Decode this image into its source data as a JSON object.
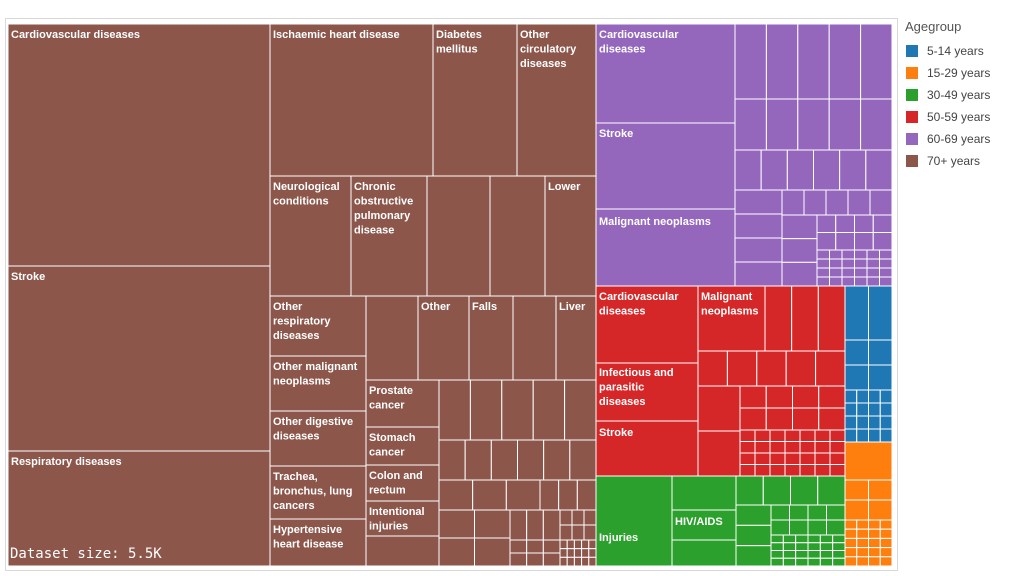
{
  "chart_data": {
    "type": "treemap",
    "legend": {
      "title": "Agegroup",
      "position": "right",
      "entries": [
        {
          "label": "5-14 years",
          "color": "#1f77b4"
        },
        {
          "label": "15-29 years",
          "color": "#ff7f0e"
        },
        {
          "label": "30-49 years",
          "color": "#2ca02c"
        },
        {
          "label": "50-59 years",
          "color": "#d62728"
        },
        {
          "label": "60-69 years",
          "color": "#9467bd"
        },
        {
          "label": "70+ years",
          "color": "#8c564b"
        }
      ]
    },
    "groups": [
      {
        "name": "70+ years",
        "labels": [
          "Cardiovascular diseases",
          "Stroke",
          "Respiratory diseases",
          "Ischaemic heart disease",
          "Diabetes mellitus",
          "Other circulatory diseases",
          "Neurological conditions",
          "Chronic obstructive pulmonary disease",
          "Lower",
          "Other respiratory diseases",
          "Other",
          "Falls",
          "Liver",
          "Other malignant neoplasms",
          "Prostate cancer",
          "Other digestive diseases",
          "Stomach cancer",
          "Trachea, bronchus, lung cancers",
          "Colon and rectum",
          "Intentional injuries",
          "Hypertensive heart disease"
        ]
      },
      {
        "name": "60-69 years",
        "labels": [
          "Cardiovascular diseases",
          "Stroke",
          "Malignant neoplasms"
        ]
      },
      {
        "name": "50-59 years",
        "labels": [
          "Cardiovascular diseases",
          "Malignant neoplasms",
          "Infectious and parasitic diseases",
          "Stroke"
        ]
      },
      {
        "name": "30-49 years",
        "labels": [
          "HIV/AIDS",
          "Injuries"
        ]
      },
      {
        "name": "5-14 years",
        "labels": []
      },
      {
        "name": "15-29 years",
        "labels": []
      }
    ]
  },
  "footer": {
    "dataset_size": "Dataset size: 5.5K"
  }
}
